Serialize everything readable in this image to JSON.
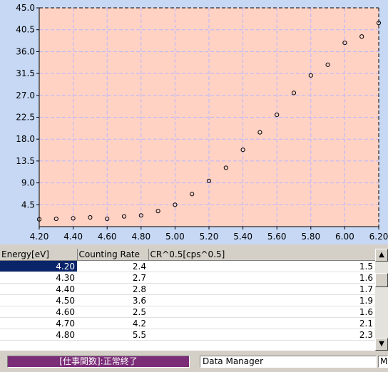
{
  "chart_data": {
    "type": "scatter",
    "xlim": [
      4.2,
      6.2
    ],
    "ylim": [
      0,
      45
    ],
    "x_ticks": [
      "4.20",
      "4.40",
      "4.60",
      "4.80",
      "5.00",
      "5.20",
      "5.40",
      "5.60",
      "5.80",
      "6.00",
      "6.20"
    ],
    "y_ticks": [
      "45.0",
      "40.5",
      "36.0",
      "31.5",
      "27.0",
      "22.5",
      "18.0",
      "13.5",
      "9.0",
      "4.5"
    ],
    "series": [
      {
        "x": [
          4.2,
          4.3,
          4.4,
          4.5,
          4.6,
          4.7,
          4.8,
          4.9,
          5.0,
          5.1,
          5.2,
          5.3,
          5.4,
          5.5,
          5.6,
          5.7,
          5.8,
          5.9,
          6.0,
          6.1,
          6.2
        ],
        "y": [
          1.5,
          1.6,
          1.7,
          1.9,
          1.6,
          2.1,
          2.3,
          3.2,
          4.5,
          6.7,
          9.4,
          12.1,
          15.8,
          19.4,
          23.0,
          27.5,
          31.1,
          33.3,
          37.8,
          39.1,
          41.9
        ]
      }
    ],
    "grid": true,
    "colors": {
      "plot_bg": "#ffd2c4",
      "outer_bg": "#c6d8f4",
      "grid": "#b6b6ff",
      "marker": "#000000"
    }
  },
  "table": {
    "headers": [
      "Energy[eV]",
      "Counting Rate",
      "CR^0.5[cps^0.5]"
    ],
    "rows": [
      [
        "4.20",
        "2.4",
        "1.5"
      ],
      [
        "4.30",
        "2.7",
        "1.6"
      ],
      [
        "4.40",
        "2.8",
        "1.7"
      ],
      [
        "4.50",
        "3.6",
        "1.9"
      ],
      [
        "4.60",
        "2.5",
        "1.6"
      ],
      [
        "4.70",
        "4.2",
        "2.1"
      ],
      [
        "4.80",
        "5.5",
        "2.3"
      ]
    ]
  },
  "scrollbar": {
    "up_icon": "▲",
    "down_icon": "▼"
  },
  "status": {
    "job": "[仕事関数]:正常終了",
    "manager": "Data Manager",
    "extra": "M",
    "job_color": "#7b2d78"
  }
}
